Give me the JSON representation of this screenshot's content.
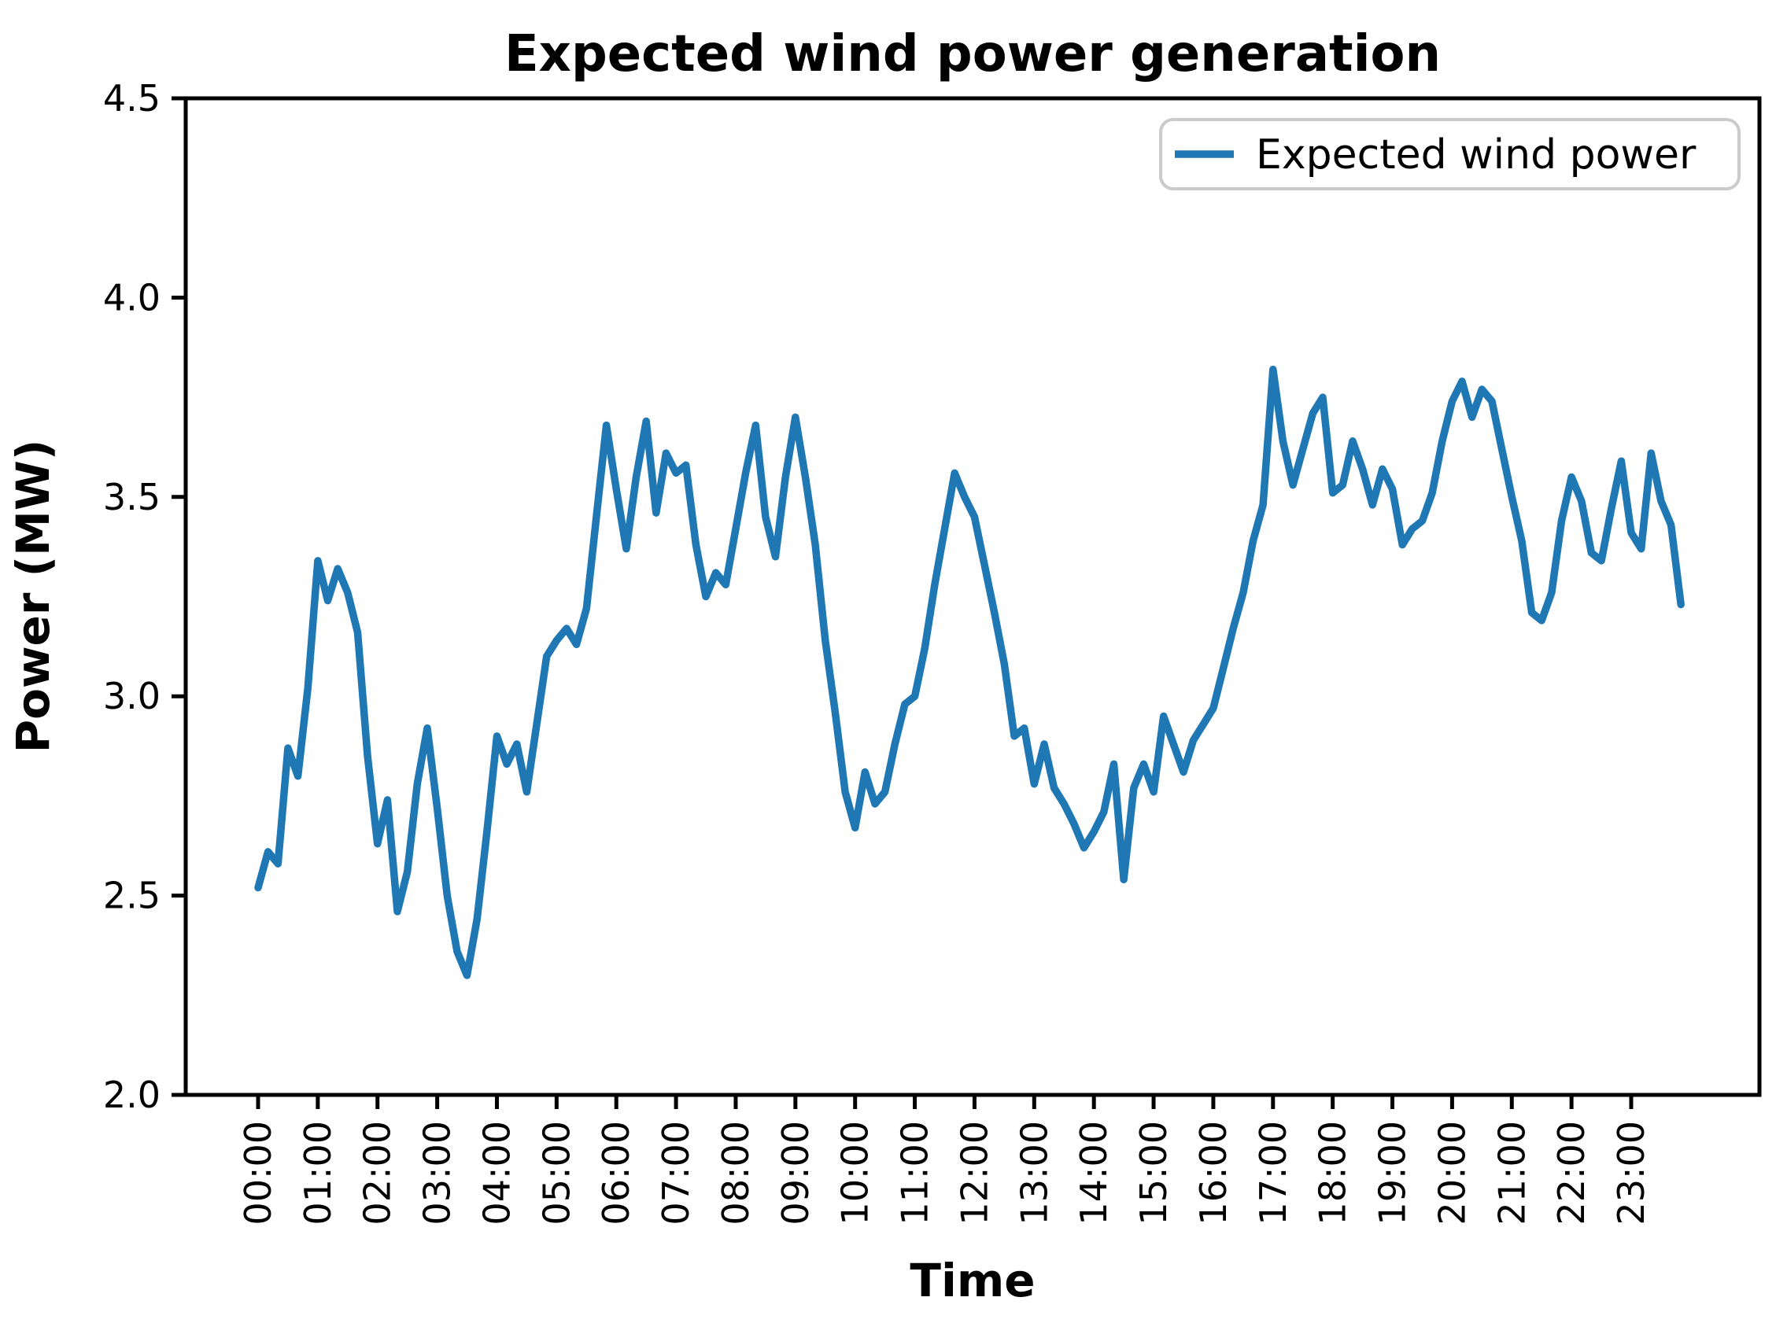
{
  "chart": {
    "title": "Expected wind power generation",
    "xlabel": "Time",
    "ylabel": "Power (MW)",
    "legend_label": "Expected wind power"
  },
  "chart_data": {
    "type": "line",
    "title": "Expected wind power generation",
    "xlabel": "Time",
    "ylabel": "Power (MW)",
    "ylim": [
      2.0,
      4.5
    ],
    "grid": false,
    "legend_position": "upper right",
    "line_color": "#1f77b4",
    "x_tick_labels": [
      "00:00",
      "01:00",
      "02:00",
      "03:00",
      "04:00",
      "05:00",
      "06:00",
      "07:00",
      "08:00",
      "09:00",
      "10:00",
      "11:00",
      "12:00",
      "13:00",
      "14:00",
      "15:00",
      "16:00",
      "17:00",
      "18:00",
      "19:00",
      "20:00",
      "21:00",
      "22:00",
      "23:00"
    ],
    "y_tick_labels": [
      "2.0",
      "2.5",
      "3.0",
      "3.5",
      "4.0",
      "4.5"
    ],
    "y_tick_values": [
      2.0,
      2.5,
      3.0,
      3.5,
      4.0,
      4.5
    ],
    "x_interval_minutes": 10,
    "series": [
      {
        "name": "Expected wind power",
        "x": [
          "00:00",
          "00:10",
          "00:20",
          "00:30",
          "00:40",
          "00:50",
          "01:00",
          "01:10",
          "01:20",
          "01:30",
          "01:40",
          "01:50",
          "02:00",
          "02:10",
          "02:20",
          "02:30",
          "02:40",
          "02:50",
          "03:00",
          "03:10",
          "03:20",
          "03:30",
          "03:40",
          "03:50",
          "04:00",
          "04:10",
          "04:20",
          "04:30",
          "04:40",
          "04:50",
          "05:00",
          "05:10",
          "05:20",
          "05:30",
          "05:40",
          "05:50",
          "06:00",
          "06:10",
          "06:20",
          "06:30",
          "06:40",
          "06:50",
          "07:00",
          "07:10",
          "07:20",
          "07:30",
          "07:40",
          "07:50",
          "08:00",
          "08:10",
          "08:20",
          "08:30",
          "08:40",
          "08:50",
          "09:00",
          "09:10",
          "09:20",
          "09:30",
          "09:40",
          "09:50",
          "10:00",
          "10:10",
          "10:20",
          "10:30",
          "10:40",
          "10:50",
          "11:00",
          "11:10",
          "11:20",
          "11:30",
          "11:40",
          "11:50",
          "12:00",
          "12:10",
          "12:20",
          "12:30",
          "12:40",
          "12:50",
          "13:00",
          "13:10",
          "13:20",
          "13:30",
          "13:40",
          "13:50",
          "14:00",
          "14:10",
          "14:20",
          "14:30",
          "14:40",
          "14:50",
          "15:00",
          "15:10",
          "15:20",
          "15:30",
          "15:40",
          "15:50",
          "16:00",
          "16:10",
          "16:20",
          "16:30",
          "16:40",
          "16:50",
          "17:00",
          "17:10",
          "17:20",
          "17:30",
          "17:40",
          "17:50",
          "18:00",
          "18:10",
          "18:20",
          "18:30",
          "18:40",
          "18:50",
          "19:00",
          "19:10",
          "19:20",
          "19:30",
          "19:40",
          "19:50",
          "20:00",
          "20:10",
          "20:20",
          "20:30",
          "20:40",
          "20:50",
          "21:00",
          "21:10",
          "21:20",
          "21:30",
          "21:40",
          "21:50",
          "22:00",
          "22:10",
          "22:20",
          "22:30",
          "22:40",
          "22:50",
          "23:00",
          "23:10",
          "23:20",
          "23:30",
          "23:40",
          "23:50"
        ],
        "values": [
          2.52,
          2.61,
          2.58,
          2.87,
          2.8,
          3.02,
          3.34,
          3.24,
          3.32,
          3.26,
          3.16,
          2.85,
          2.63,
          2.74,
          2.46,
          2.56,
          2.78,
          2.92,
          2.72,
          2.5,
          2.36,
          2.3,
          2.44,
          2.66,
          2.9,
          2.83,
          2.88,
          2.76,
          2.93,
          3.1,
          3.14,
          3.17,
          3.13,
          3.22,
          3.45,
          3.68,
          3.52,
          3.37,
          3.55,
          3.69,
          3.46,
          3.61,
          3.56,
          3.58,
          3.38,
          3.25,
          3.31,
          3.28,
          3.42,
          3.56,
          3.68,
          3.45,
          3.35,
          3.55,
          3.7,
          3.55,
          3.38,
          3.14,
          2.96,
          2.76,
          2.67,
          2.81,
          2.73,
          2.76,
          2.88,
          2.98,
          3.0,
          3.12,
          3.28,
          3.42,
          3.56,
          3.5,
          3.45,
          3.33,
          3.21,
          3.08,
          2.9,
          2.92,
          2.78,
          2.88,
          2.77,
          2.73,
          2.68,
          2.62,
          2.66,
          2.71,
          2.83,
          2.54,
          2.77,
          2.83,
          2.76,
          2.95,
          2.88,
          2.81,
          2.89,
          2.93,
          2.97,
          3.07,
          3.17,
          3.26,
          3.39,
          3.48,
          3.82,
          3.64,
          3.53,
          3.62,
          3.71,
          3.75,
          3.51,
          3.53,
          3.64,
          3.57,
          3.48,
          3.57,
          3.52,
          3.38,
          3.42,
          3.44,
          3.51,
          3.64,
          3.74,
          3.79,
          3.7,
          3.77,
          3.74,
          3.62,
          3.5,
          3.39,
          3.21,
          3.19,
          3.26,
          3.44,
          3.55,
          3.49,
          3.36,
          3.34,
          3.47,
          3.59,
          3.41,
          3.37,
          3.61,
          3.49,
          3.43,
          3.23
        ]
      }
    ]
  }
}
